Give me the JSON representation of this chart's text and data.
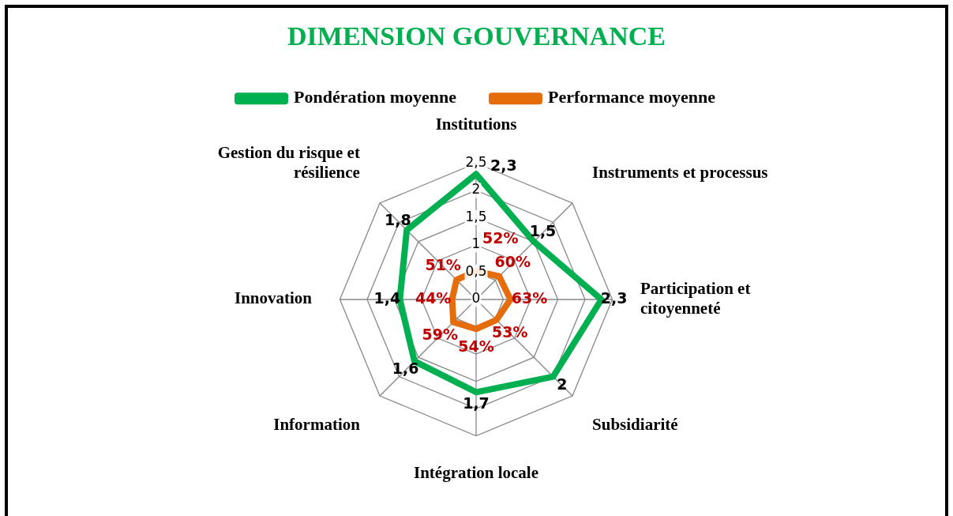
{
  "chart_data": {
    "type": "radar",
    "title": "DIMENSION GOUVERNANCE",
    "categories": [
      "Institutions",
      "Instruments et processus",
      "Participation et\ncitoyenneté",
      "Subsidiarité",
      "Intégration locale",
      "Information",
      "Innovation",
      "Gestion du risque et\nrésilience"
    ],
    "series": [
      {
        "name": "Pondération moyenne",
        "color": "#00b050",
        "values": [
          2.3,
          1.5,
          2.3,
          2,
          1.7,
          1.6,
          1.4,
          1.8
        ],
        "value_labels": [
          "2,3",
          "1,5",
          "2,3",
          "2",
          "1,7",
          "1,6",
          "1,4",
          "1,8"
        ]
      },
      {
        "name": "Performance moyenne",
        "color": "#e46c0a",
        "values": [
          0.52,
          0.6,
          0.63,
          0.53,
          0.54,
          0.59,
          0.44,
          0.51
        ],
        "value_labels": [
          "52%",
          "60%",
          "63%",
          "53%",
          "54%",
          "59%",
          "44%",
          "51%"
        ]
      }
    ],
    "ylim": [
      0,
      2.5
    ],
    "yticks": [
      0,
      {
        "value": 0.5,
        "label": "0,5"
      },
      1,
      {
        "value": 1.5,
        "label": "1,5"
      },
      2,
      {
        "value": 2.5,
        "label": "2,5"
      }
    ],
    "grid": true,
    "legend": "top",
    "marker": "none"
  }
}
